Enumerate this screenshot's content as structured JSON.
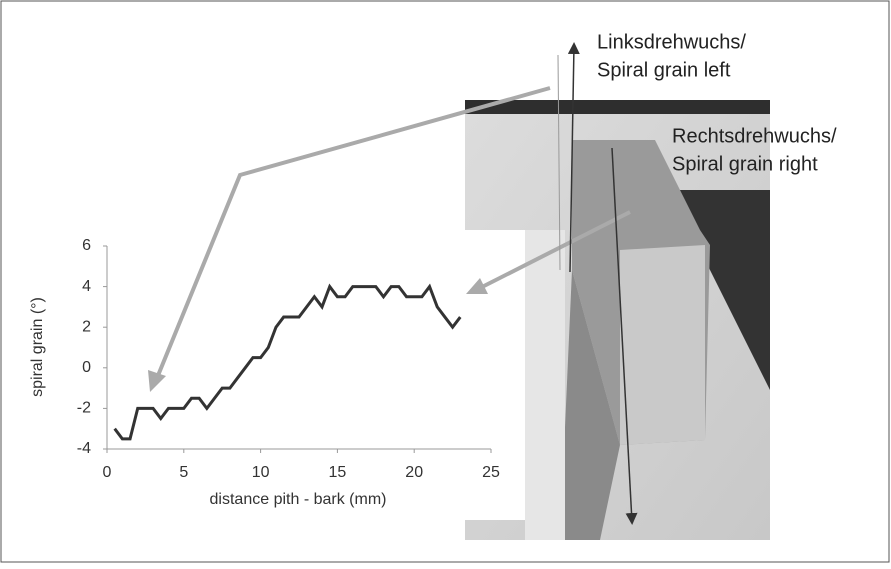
{
  "chart_data": {
    "type": "line",
    "y_label": "spiral grain (°)",
    "x_label": "distance pith - bark  (mm)",
    "x": [
      0.5,
      1,
      1.5,
      2,
      2.5,
      3,
      3.5,
      4,
      4.5,
      5,
      5.5,
      6,
      6.5,
      7,
      7.5,
      8,
      8.5,
      9,
      9.5,
      10,
      10.5,
      11,
      11.5,
      12,
      12.5,
      13,
      13.5,
      14,
      14.5,
      15,
      15.5,
      16,
      16.5,
      17,
      17.5,
      18,
      18.5,
      19,
      19.5,
      20,
      20.5,
      21,
      21.5,
      22,
      22.5,
      23
    ],
    "values": [
      -3,
      -3.5,
      -3.5,
      -2,
      -2,
      -2,
      -2.5,
      -2,
      -2,
      -2,
      -1.5,
      -1.5,
      -2,
      -1.5,
      -1,
      -1,
      -0.5,
      0,
      0.5,
      0.5,
      1,
      2,
      2.5,
      2.5,
      2.5,
      3,
      3.5,
      3,
      4,
      3.5,
      3.5,
      4,
      4,
      4,
      4,
      3.5,
      4,
      4,
      3.5,
      3.5,
      3.5,
      4,
      3,
      2.5,
      2,
      2.5
    ],
    "color": "#333333",
    "xlim": [
      0,
      25
    ],
    "xticks": [
      0,
      5,
      10,
      15,
      20,
      25
    ],
    "ylim": [
      -4,
      6
    ],
    "yticks": [
      -4,
      -2,
      0,
      2,
      4,
      6
    ],
    "grid": false,
    "annotations": [
      [
        "Linksdrehwuchs/",
        "Spiral grain left"
      ],
      [
        "Rechtsdrehwuchs/",
        "Spiral grain right"
      ]
    ]
  }
}
